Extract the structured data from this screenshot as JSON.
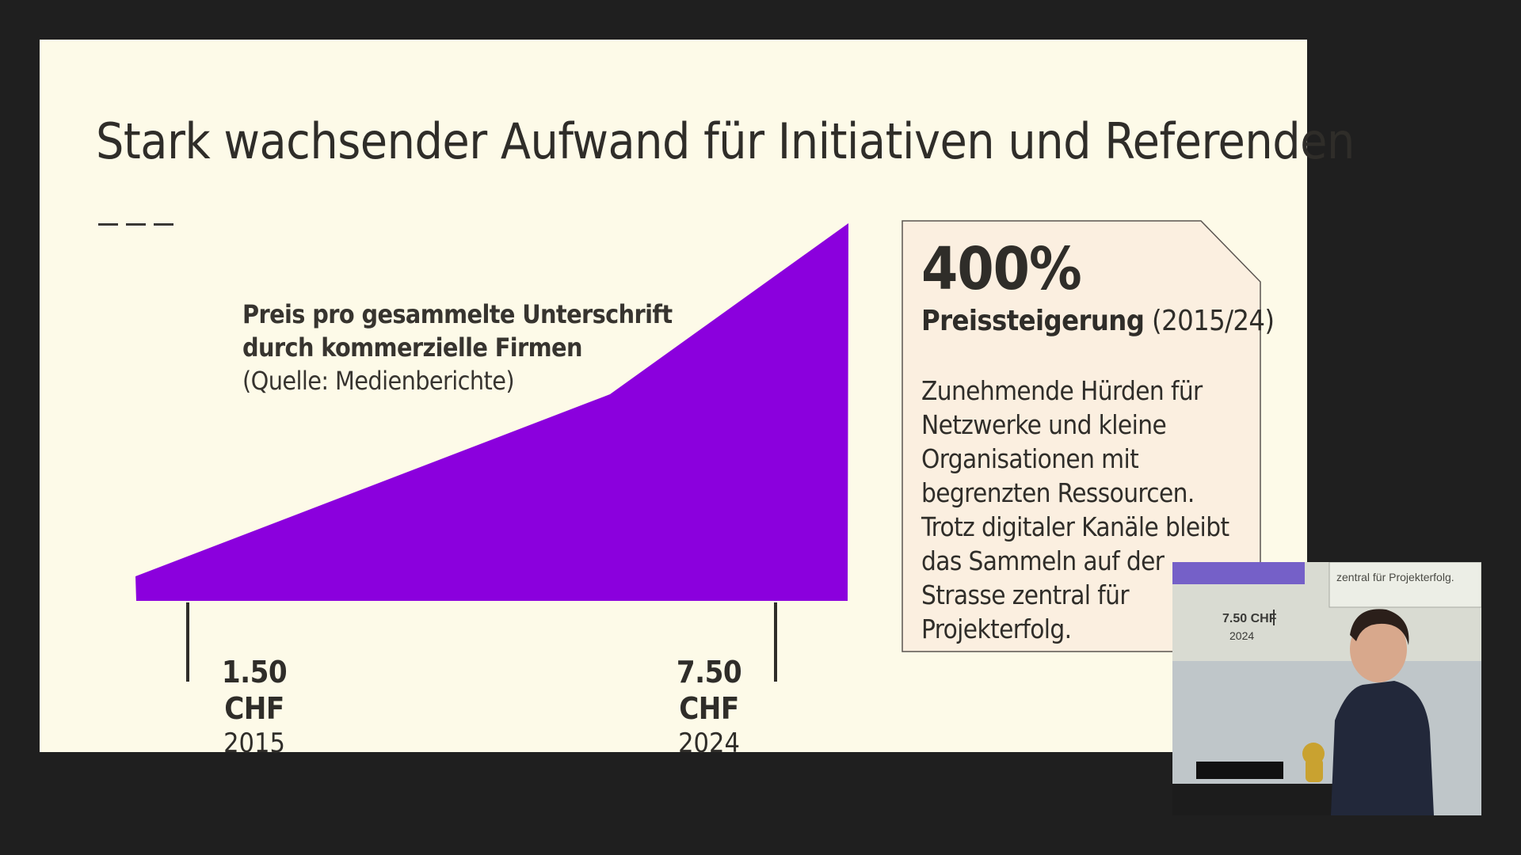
{
  "slide": {
    "title": "Stark wachsender Aufwand für Initiativen und Referenden"
  },
  "chart": {
    "caption_line1": "Preis pro gesammelte Unterschrift",
    "caption_line2": "durch kommerzielle Firmen",
    "caption_source": "(Quelle: Medienberichte)",
    "fill_color": "#8b00dd",
    "start_value": "1.50 CHF",
    "start_year": "2015",
    "end_value": "7.50 CHF",
    "end_year": "2024"
  },
  "chart_data": {
    "type": "area",
    "title": "Preis pro gesammelte Unterschrift durch kommerzielle Firmen",
    "x": [
      "2015",
      "2024"
    ],
    "values": [
      1.5,
      7.5
    ],
    "unit": "CHF",
    "grid": false
  },
  "info_card": {
    "headline": "400%",
    "subhead_bold": "Preissteigerung",
    "subhead_rest": " (2015/24)",
    "body": "Zunehmende Hürden für Netzwerke und kleine Organisationen mit begrenzten Ressourcen. Trotz digitaler Kanäle bleibt das Sammeln auf der Strasse zentral für Projekterfolg."
  },
  "webcam": {
    "overlay_text": "zentral für Projekterfolg.",
    "overlay_value": "7.50 CHF",
    "overlay_year": "2024"
  },
  "colors": {
    "background": "#1f1f1f",
    "slide": "#fdfae8",
    "accent": "#8b00dd",
    "card": "#fbefe0"
  }
}
